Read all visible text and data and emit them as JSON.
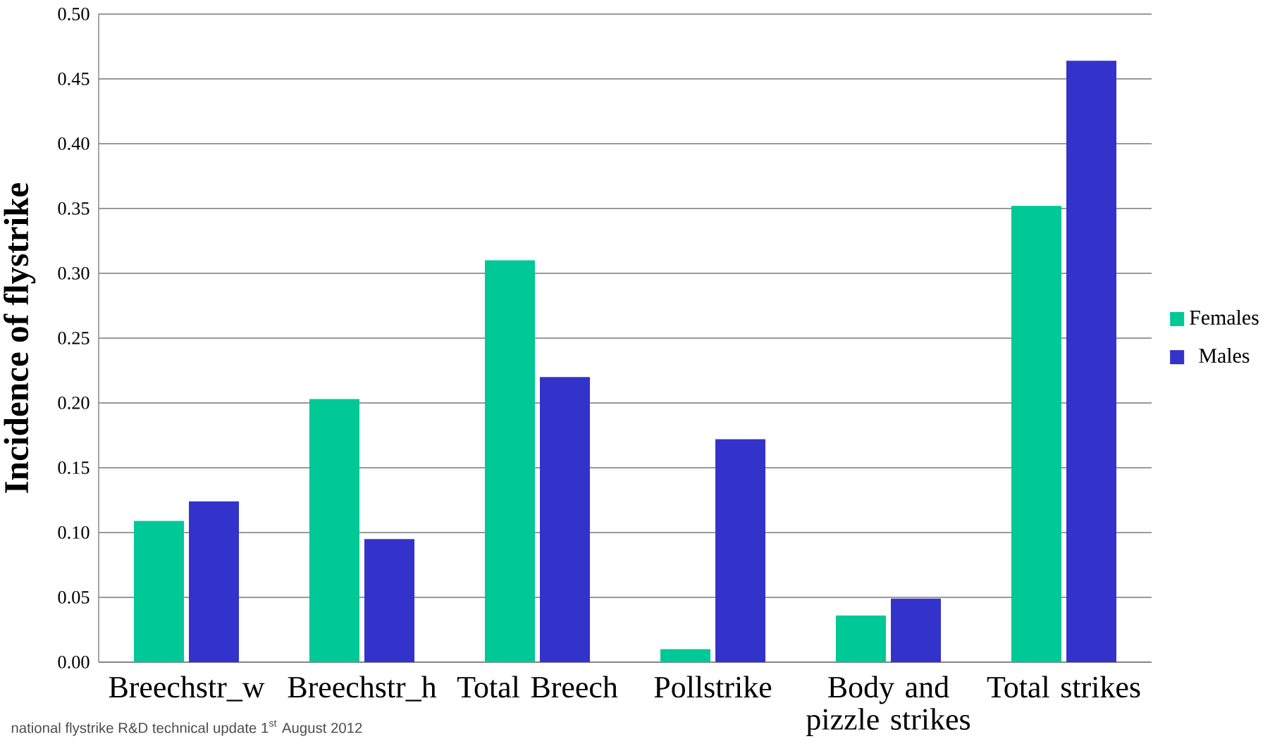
{
  "chart_data": {
    "type": "bar",
    "ylabel": "Incidence of flystrike",
    "categories": [
      "Breechstr_w",
      "Breechstr_h",
      "Total Breech",
      "Pollstrike",
      "Body and pizzle strikes",
      "Total strikes"
    ],
    "series": [
      {
        "name": "Females",
        "color": "#00c896",
        "values": [
          0.109,
          0.203,
          0.31,
          0.01,
          0.036,
          0.352
        ]
      },
      {
        "name": "Males",
        "color": "#3333cc",
        "values": [
          0.124,
          0.095,
          0.22,
          0.172,
          0.049,
          0.464
        ]
      }
    ],
    "ylim": [
      0,
      0.5
    ],
    "yticks": [
      {
        "value": 0,
        "label": "0.00"
      },
      {
        "value": 0.05,
        "label": "0.05"
      },
      {
        "value": 0.1,
        "label": "0.10"
      },
      {
        "value": 0.15,
        "label": "0.15"
      },
      {
        "value": 0.2,
        "label": "0.20"
      },
      {
        "value": 0.25,
        "label": "0.25"
      },
      {
        "value": 0.3,
        "label": "0.30"
      },
      {
        "value": 0.35,
        "label": "0.35"
      },
      {
        "value": 0.4,
        "label": "0.40"
      },
      {
        "value": 0.45,
        "label": "0.45"
      },
      {
        "value": 0.5,
        "label": "0.50"
      }
    ],
    "grid": "y",
    "legend": "right",
    "annotations": [
      "national flystrike R&D technical update  1$^{st}$ August 2012"
    ]
  }
}
